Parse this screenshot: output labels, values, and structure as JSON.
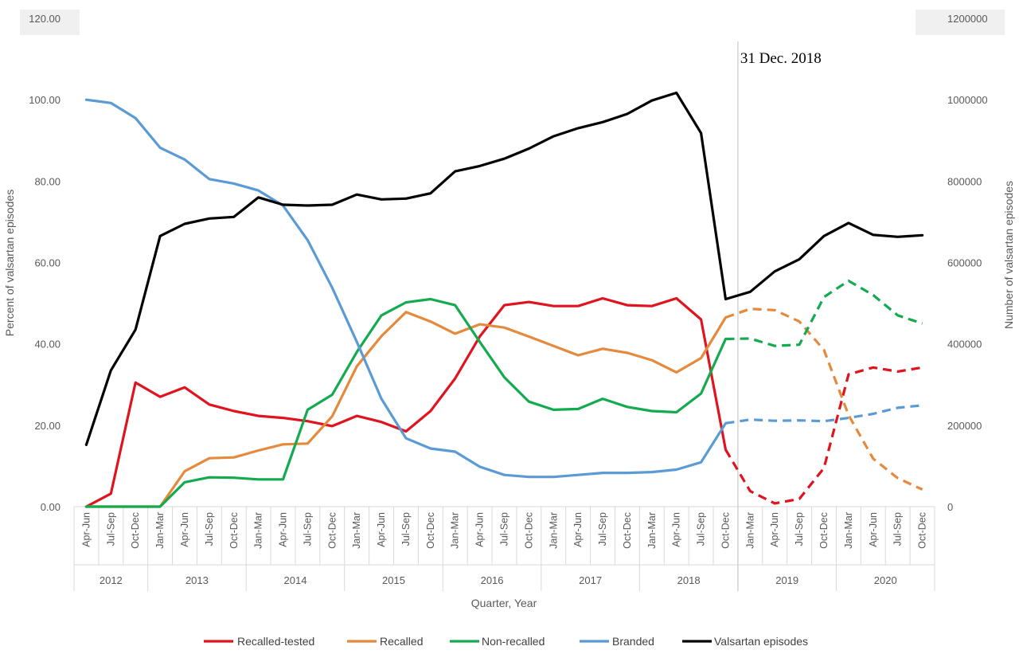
{
  "chart_data": {
    "type": "line",
    "title": "",
    "xlabel": "Quarter, Year",
    "ylabel": "Percent of valsartan episodes",
    "y2label": "Number of valsartan episodes",
    "ylim": [
      0,
      120
    ],
    "y2lim": [
      0,
      1200000
    ],
    "yticks": [
      "0.00",
      "20.00",
      "40.00",
      "60.00",
      "80.00",
      "100.00",
      "120.00"
    ],
    "y2ticks": [
      "0",
      "200000",
      "400000",
      "600000",
      "800000",
      "1000000",
      "1200000"
    ],
    "grid": false,
    "legend_position": "bottom",
    "years": [
      {
        "label": "2012",
        "quarters": 3
      },
      {
        "label": "2013",
        "quarters": 4
      },
      {
        "label": "2014",
        "quarters": 4
      },
      {
        "label": "2015",
        "quarters": 4
      },
      {
        "label": "2016",
        "quarters": 4
      },
      {
        "label": "2017",
        "quarters": 4
      },
      {
        "label": "2018",
        "quarters": 4
      },
      {
        "label": "2019",
        "quarters": 4
      },
      {
        "label": "2020",
        "quarters": 4
      }
    ],
    "categories": [
      "Apr-Jun",
      "Jul-Sep",
      "Oct-Dec",
      "Jan-Mar",
      "Apr-Jun",
      "Jul-Sep",
      "Oct-Dec",
      "Jan-Mar",
      "Apr-Jun",
      "Jul-Sep",
      "Oct-Dec",
      "Jan-Mar",
      "Apr-Jun",
      "Jul-Sep",
      "Oct-Dec",
      "Jan-Mar",
      "Apr-Jun",
      "Jul-Sep",
      "Oct-Dec",
      "Jan-Mar",
      "Apr-Jun",
      "Jul-Sep",
      "Oct-Dec",
      "Jan-Mar",
      "Apr-Jun",
      "Jul-Sep",
      "Oct-Dec",
      "Jan-Mar",
      "Apr-Jun",
      "Jul-Sep",
      "Oct-Dec",
      "Jan-Mar",
      "Apr-Jun",
      "Jul-Sep",
      "Oct-Dec"
    ],
    "observed_until_index": 26,
    "annotation": {
      "text": "31 Dec. 2018"
    },
    "series": [
      {
        "name": "Recalled-tested",
        "color": "#e0141e",
        "axis": "left",
        "values": [
          0,
          3.2,
          30.5,
          27,
          29.3,
          25.1,
          23.5,
          22.3,
          21.8,
          21,
          19.8,
          22.3,
          20.8,
          18.5,
          23.5,
          31.5,
          41.8,
          49.5,
          50.3,
          49.3,
          49.3,
          51.2,
          49.5,
          49.3,
          51.2,
          46,
          14,
          3.8,
          0.8,
          1.9,
          9.5,
          32.5,
          34.2,
          33.2,
          34.2
        ]
      },
      {
        "name": "Recalled",
        "color": "#e58a3c",
        "axis": "left",
        "values": [
          0,
          0,
          0,
          0,
          8.7,
          11.9,
          12.1,
          13.8,
          15.3,
          15.5,
          22.2,
          34.5,
          41.9,
          47.8,
          45.5,
          42.5,
          44.8,
          44,
          41.8,
          39.5,
          37.2,
          38.8,
          37.8,
          36,
          33,
          36.5,
          46.5,
          48.6,
          48.3,
          45.5,
          38.5,
          22.5,
          11.8,
          7,
          4.2
        ]
      },
      {
        "name": "Non-recalled",
        "color": "#14aa50",
        "axis": "left",
        "values": [
          0,
          0,
          0,
          0,
          6,
          7.2,
          7.1,
          6.7,
          6.7,
          23.8,
          27.5,
          38,
          47,
          50.2,
          51,
          49.5,
          40.5,
          31.8,
          25.8,
          23.8,
          24,
          26.5,
          24.5,
          23.5,
          23.2,
          27.8,
          41.2,
          41.3,
          39.5,
          39.8,
          51.5,
          55.5,
          52,
          47,
          45
        ]
      },
      {
        "name": "Branded",
        "color": "#5b9bd5",
        "axis": "left",
        "values": [
          100,
          99.2,
          95.5,
          88.2,
          85.3,
          80.5,
          79.4,
          77.7,
          74,
          65.5,
          53.8,
          40.5,
          26.5,
          16.8,
          14.3,
          13.5,
          9.8,
          7.8,
          7.3,
          7.3,
          7.8,
          8.3,
          8.3,
          8.5,
          9.1,
          10.9,
          20.5,
          21.4,
          21.1,
          21.2,
          21,
          21.8,
          22.8,
          24.3,
          24.9
        ]
      },
      {
        "name": "Valsartan episodes",
        "color": "#000000",
        "axis": "right",
        "values": [
          152000,
          335000,
          435000,
          665000,
          695000,
          708000,
          712000,
          760000,
          742000,
          740000,
          742000,
          767000,
          755000,
          757000,
          770000,
          824000,
          837000,
          855000,
          880000,
          910000,
          930000,
          945000,
          965000,
          998000,
          1017000,
          918000,
          510000,
          528000,
          578000,
          608000,
          665000,
          697000,
          668000,
          663000,
          667000
        ]
      }
    ]
  }
}
